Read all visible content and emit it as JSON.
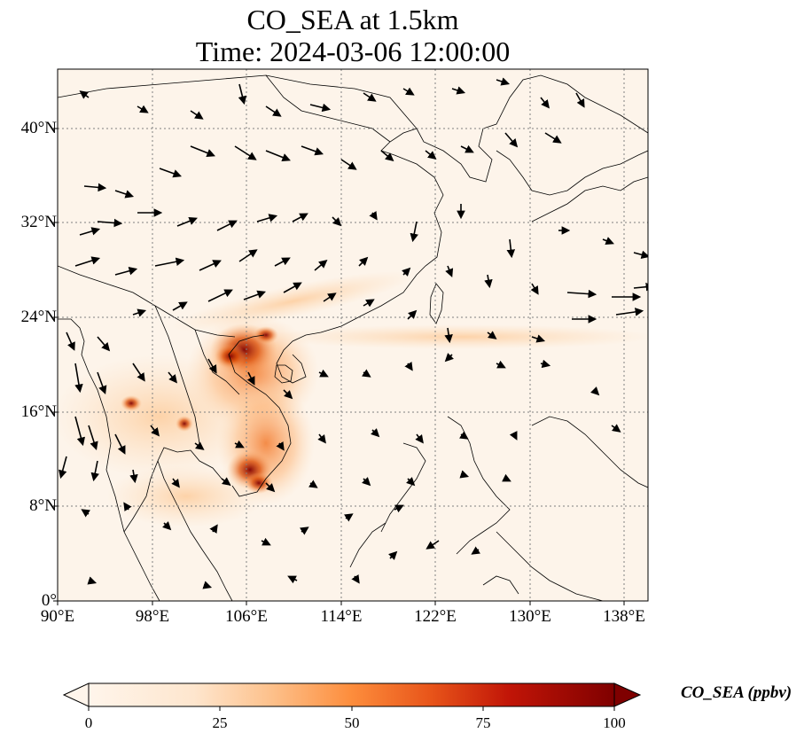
{
  "title": "CO_SEA at 1.5km",
  "subtitle": "Time: 2024-03-06 12:00:00",
  "map": {
    "extent": {
      "lon": [
        90,
        140
      ],
      "lat": [
        0,
        45
      ]
    },
    "xticks": [
      {
        "lon": 90,
        "label": "90°E"
      },
      {
        "lon": 98,
        "label": "98°E"
      },
      {
        "lon": 106,
        "label": "106°E"
      },
      {
        "lon": 114,
        "label": "114°E"
      },
      {
        "lon": 122,
        "label": "122°E"
      },
      {
        "lon": 130,
        "label": "130°E"
      },
      {
        "lon": 138,
        "label": "138°E"
      }
    ],
    "yticks": [
      {
        "lat": 0,
        "label": "0°"
      },
      {
        "lat": 8,
        "label": "8°N"
      },
      {
        "lat": 16,
        "label": "16°N"
      },
      {
        "lat": 24,
        "label": "24°N"
      },
      {
        "lat": 32,
        "label": "32°N"
      },
      {
        "lat": 40,
        "label": "40°N"
      }
    ],
    "gridlines": "dotted",
    "field_colors": {
      "background": "#fdf4ea",
      "coast": "#000000"
    }
  },
  "colorbar": {
    "label": "CO_SEA (ppbv)",
    "range": [
      0,
      100
    ],
    "ticks": [
      {
        "value": 0,
        "label": "0"
      },
      {
        "value": 25,
        "label": "25"
      },
      {
        "value": 50,
        "label": "50"
      },
      {
        "value": 75,
        "label": "75"
      },
      {
        "value": 100,
        "label": "100"
      }
    ],
    "extend": "both",
    "colormap": [
      "#fff5eb",
      "#fdd9b3",
      "#fdae6b",
      "#f16913",
      "#d94801",
      "#a00000",
      "#7f0000"
    ]
  }
}
